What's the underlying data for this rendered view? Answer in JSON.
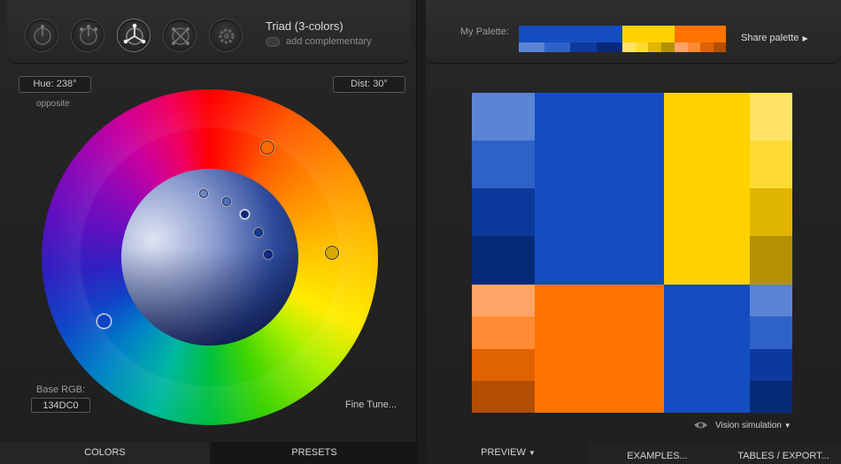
{
  "header": {
    "scheme_title": "Triad (3-colors)",
    "complementary_label": "add complementary"
  },
  "readouts": {
    "hue": "Hue: 238°",
    "dist": "Dist: 30°",
    "opposite": "opposite",
    "base_rgb_label": "Base RGB:",
    "base_rgb_value": "134DC0",
    "fine_tune": "Fine Tune..."
  },
  "left_tabs": [
    "COLORS",
    "PRESETS"
  ],
  "right_header": {
    "palette_label": "My Palette:",
    "share_label": "Share palette"
  },
  "palette": {
    "blue": {
      "main": "#134DC0",
      "shades": [
        "#5b84d6",
        "#2f62c8",
        "#0c3a9c",
        "#072a78"
      ]
    },
    "yellow": {
      "main": "#FFD200",
      "shades": [
        "#ffe366",
        "#ffda33",
        "#e0b600",
        "#b39100"
      ]
    },
    "orange": {
      "main": "#FF7400",
      "shades": [
        "#ffa366",
        "#ff8a33",
        "#e06200",
        "#b34e00"
      ]
    }
  },
  "vision": {
    "label": "Vision simulation"
  },
  "right_tabs": [
    "PREVIEW",
    "EXAMPLES...",
    "TABLES / EXPORT..."
  ],
  "icons": [
    "mono-mode-icon",
    "adjacent-mode-icon",
    "triad-mode-icon",
    "tetrad-mode-icon",
    "free-mode-icon",
    "eye-icon",
    "caret-down-icon",
    "caret-right-icon"
  ]
}
